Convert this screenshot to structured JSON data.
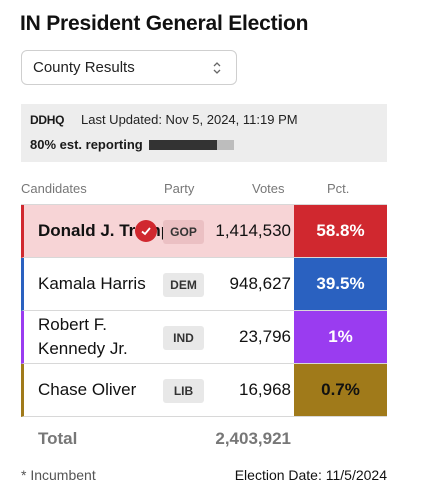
{
  "title": "IN President General Election",
  "select": {
    "value": "County Results",
    "icon": "chevron-up-down-icon"
  },
  "status": {
    "logo": "DDHQ",
    "updated": "Last Updated: Nov 5, 2024, 11:19 PM",
    "reporting": "80% est. reporting",
    "reporting_fraction": 0.8
  },
  "headers": {
    "candidates": "Candidates",
    "party": "Party",
    "votes": "Votes",
    "pct": "Pct."
  },
  "candidates": [
    {
      "name": "Donald J. Trump",
      "party": "GOP",
      "votes": "1,414,530",
      "pct": "58.8%",
      "winner": true
    },
    {
      "name": "Kamala Harris",
      "party": "DEM",
      "votes": "948,627",
      "pct": "39.5%"
    },
    {
      "name": "Robert F. Kennedy Jr.",
      "party": "IND",
      "votes": "23,796",
      "pct": "1%"
    },
    {
      "name": "Chase Oliver",
      "party": "LIB",
      "votes": "16,968",
      "pct": "0.7%"
    }
  ],
  "total": {
    "label": "Total",
    "votes": "2,403,921"
  },
  "footer": {
    "incumbent": "* Incumbent",
    "election_date": "Election Date: 11/5/2024"
  },
  "colors": {
    "gop": "#d0282f",
    "dem": "#2a61c0",
    "ind": "#9a3cf0",
    "lib": "#a07a1a"
  }
}
